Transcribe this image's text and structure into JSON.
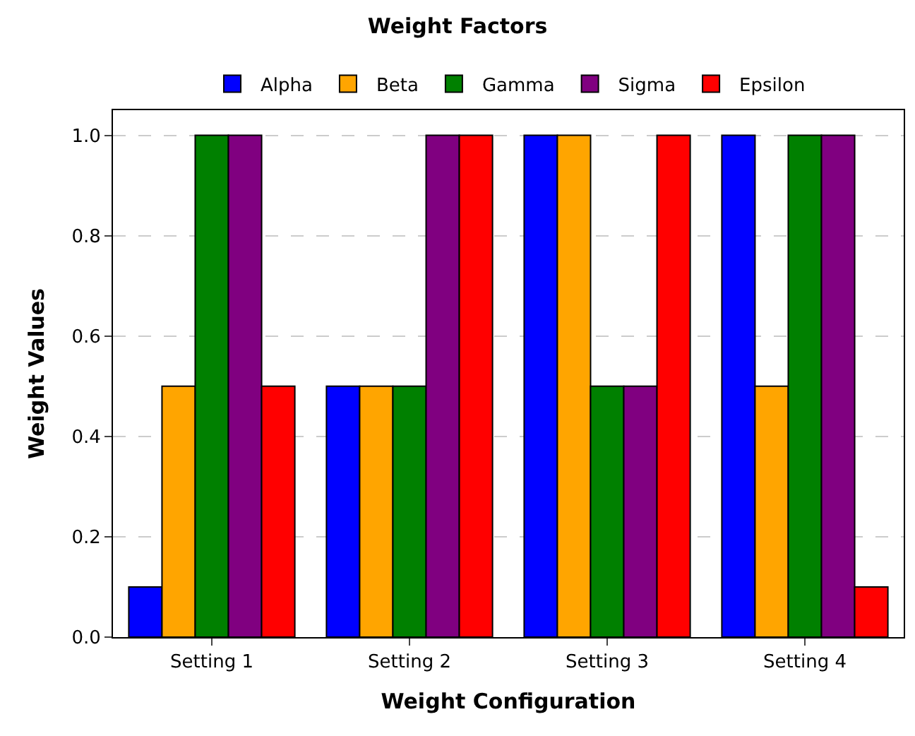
{
  "chart_data": {
    "type": "bar",
    "title": "Weight Factors",
    "xlabel": "Weight Configuration",
    "ylabel": "Weight Values",
    "categories": [
      "Setting 1",
      "Setting 2",
      "Setting 3",
      "Setting 4"
    ],
    "series": [
      {
        "name": "Alpha",
        "color": "#0000ff",
        "values": [
          0.1,
          0.5,
          1.0,
          1.0
        ]
      },
      {
        "name": "Beta",
        "color": "#ffa500",
        "values": [
          0.5,
          0.5,
          1.0,
          0.5
        ]
      },
      {
        "name": "Gamma",
        "color": "#008000",
        "values": [
          1.0,
          0.5,
          0.5,
          1.0
        ]
      },
      {
        "name": "Sigma",
        "color": "#800080",
        "values": [
          1.0,
          1.0,
          0.5,
          1.0
        ]
      },
      {
        "name": "Epsilon",
        "color": "#ff0000",
        "values": [
          0.5,
          1.0,
          1.0,
          0.1
        ]
      }
    ],
    "ylim": [
      0,
      1.05
    ],
    "yticks": [
      {
        "value": 0,
        "label": "0.0"
      },
      0.2,
      0.4,
      0.6,
      0.8,
      {
        "value": 1,
        "label": "1.0"
      }
    ],
    "grid": "y",
    "legend": "top"
  }
}
